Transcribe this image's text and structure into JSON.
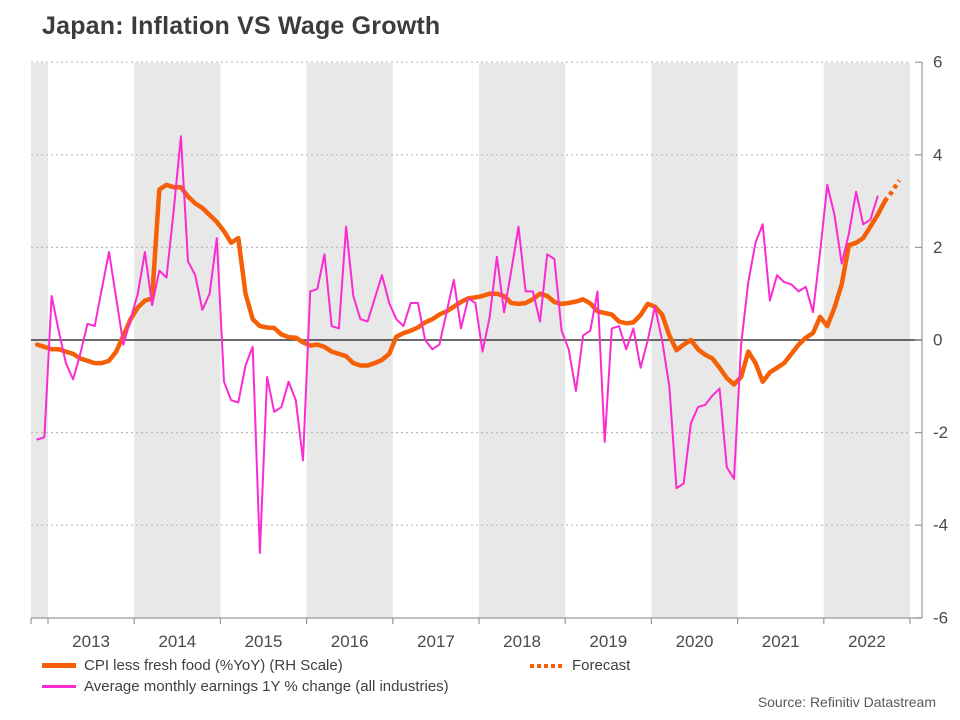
{
  "title": "Japan: Inflation VS Wage Growth",
  "source": "Source: Refinitiv Datastream",
  "style": {
    "cpi_color": "#f55f05",
    "wage_color": "#fb2bd2",
    "band_color": "#e8e8e8",
    "grid_color": "#bbbbbb",
    "zero_line_color": "#3a3a3a",
    "axis_color": "#999999",
    "tick_label_color": "#4a4a4a"
  },
  "chart_data": {
    "type": "line",
    "title": "Japan: Inflation VS Wage Growth",
    "frequency": "monthly",
    "start_month": "2012-11",
    "x_tick_labels": [
      "2013",
      "2014",
      "2015",
      "2016",
      "2017",
      "2018",
      "2019",
      "2020",
      "2021",
      "2022"
    ],
    "y_axis": {
      "side": "right",
      "min": -6,
      "max": 6,
      "tick_step": 2,
      "tick_labels": [
        "6",
        "4",
        "2",
        "0",
        "-2",
        "-4",
        "-6"
      ]
    },
    "grid": "dotted-horizontal",
    "background_bands": "alternating-even-years",
    "legend_position": "bottom-left",
    "series": [
      {
        "name": "CPI less fresh food (%YoY) (RH Scale)",
        "color": "#f55f05",
        "line_width": 4.5,
        "style": "solid",
        "values": [
          -0.1,
          -0.15,
          -0.2,
          -0.2,
          -0.25,
          -0.3,
          -0.4,
          -0.45,
          -0.5,
          -0.5,
          -0.45,
          -0.25,
          0.1,
          0.45,
          0.7,
          0.85,
          0.9,
          3.25,
          3.35,
          3.3,
          3.3,
          3.1,
          2.95,
          2.85,
          2.7,
          2.55,
          2.35,
          2.1,
          2.2,
          1.0,
          0.45,
          0.3,
          0.27,
          0.26,
          0.12,
          0.06,
          0.05,
          -0.05,
          -0.12,
          -0.1,
          -0.15,
          -0.25,
          -0.3,
          -0.35,
          -0.5,
          -0.55,
          -0.55,
          -0.5,
          -0.43,
          -0.3,
          0.07,
          0.15,
          0.2,
          0.27,
          0.38,
          0.45,
          0.55,
          0.62,
          0.72,
          0.82,
          0.9,
          0.92,
          0.95,
          1.0,
          1.0,
          0.95,
          0.8,
          0.78,
          0.8,
          0.88,
          1.0,
          0.95,
          0.82,
          0.78,
          0.8,
          0.83,
          0.88,
          0.79,
          0.62,
          0.58,
          0.55,
          0.4,
          0.36,
          0.38,
          0.54,
          0.78,
          0.72,
          0.55,
          0.1,
          -0.22,
          -0.1,
          0.0,
          -0.2,
          -0.32,
          -0.4,
          -0.6,
          -0.82,
          -0.96,
          -0.8,
          -0.25,
          -0.5,
          -0.9,
          -0.7,
          -0.6,
          -0.5,
          -0.3,
          -0.1,
          0.05,
          0.15,
          0.5,
          0.3,
          0.7,
          1.2,
          2.05,
          2.1,
          2.2,
          2.45,
          2.7,
          3.0
        ]
      },
      {
        "name": "Average monthly earnings 1Y % change (all industries)",
        "color": "#fb2bd2",
        "line_width": 2,
        "style": "solid",
        "values": [
          -2.15,
          -2.1,
          0.95,
          0.2,
          -0.5,
          -0.85,
          -0.3,
          0.35,
          0.3,
          1.1,
          1.9,
          0.9,
          -0.1,
          0.45,
          1.0,
          1.9,
          0.75,
          1.5,
          1.35,
          2.8,
          4.4,
          1.7,
          1.4,
          0.65,
          1.0,
          2.2,
          -0.9,
          -1.3,
          -1.35,
          -0.55,
          -0.15,
          -4.6,
          -0.8,
          -1.55,
          -1.45,
          -0.9,
          -1.3,
          -2.6,
          1.05,
          1.1,
          1.85,
          0.3,
          0.25,
          2.45,
          0.95,
          0.45,
          0.4,
          0.9,
          1.4,
          0.8,
          0.45,
          0.3,
          0.8,
          0.8,
          0.0,
          -0.2,
          -0.1,
          0.6,
          1.3,
          0.25,
          0.9,
          0.8,
          -0.25,
          0.5,
          1.8,
          0.6,
          1.5,
          2.45,
          1.05,
          1.05,
          0.4,
          1.85,
          1.75,
          0.2,
          -0.2,
          -1.1,
          0.1,
          0.2,
          1.05,
          -2.2,
          0.25,
          0.3,
          -0.2,
          0.25,
          -0.6,
          0.0,
          0.72,
          0.0,
          -1.0,
          -3.2,
          -3.1,
          -1.8,
          -1.45,
          -1.4,
          -1.2,
          -1.05,
          -2.75,
          -3.0,
          -0.1,
          1.25,
          2.1,
          2.5,
          0.85,
          1.4,
          1.25,
          1.2,
          1.05,
          1.15,
          0.6,
          1.9,
          3.35,
          2.7,
          1.65,
          2.3,
          3.2,
          2.5,
          2.6,
          3.1
        ]
      },
      {
        "name": "Forecast",
        "color": "#f55f05",
        "line_width": 4.5,
        "style": "dotted",
        "continues_from": "CPI less fresh food (%YoY) (RH Scale)",
        "values": [
          3.2,
          3.45
        ]
      }
    ]
  }
}
